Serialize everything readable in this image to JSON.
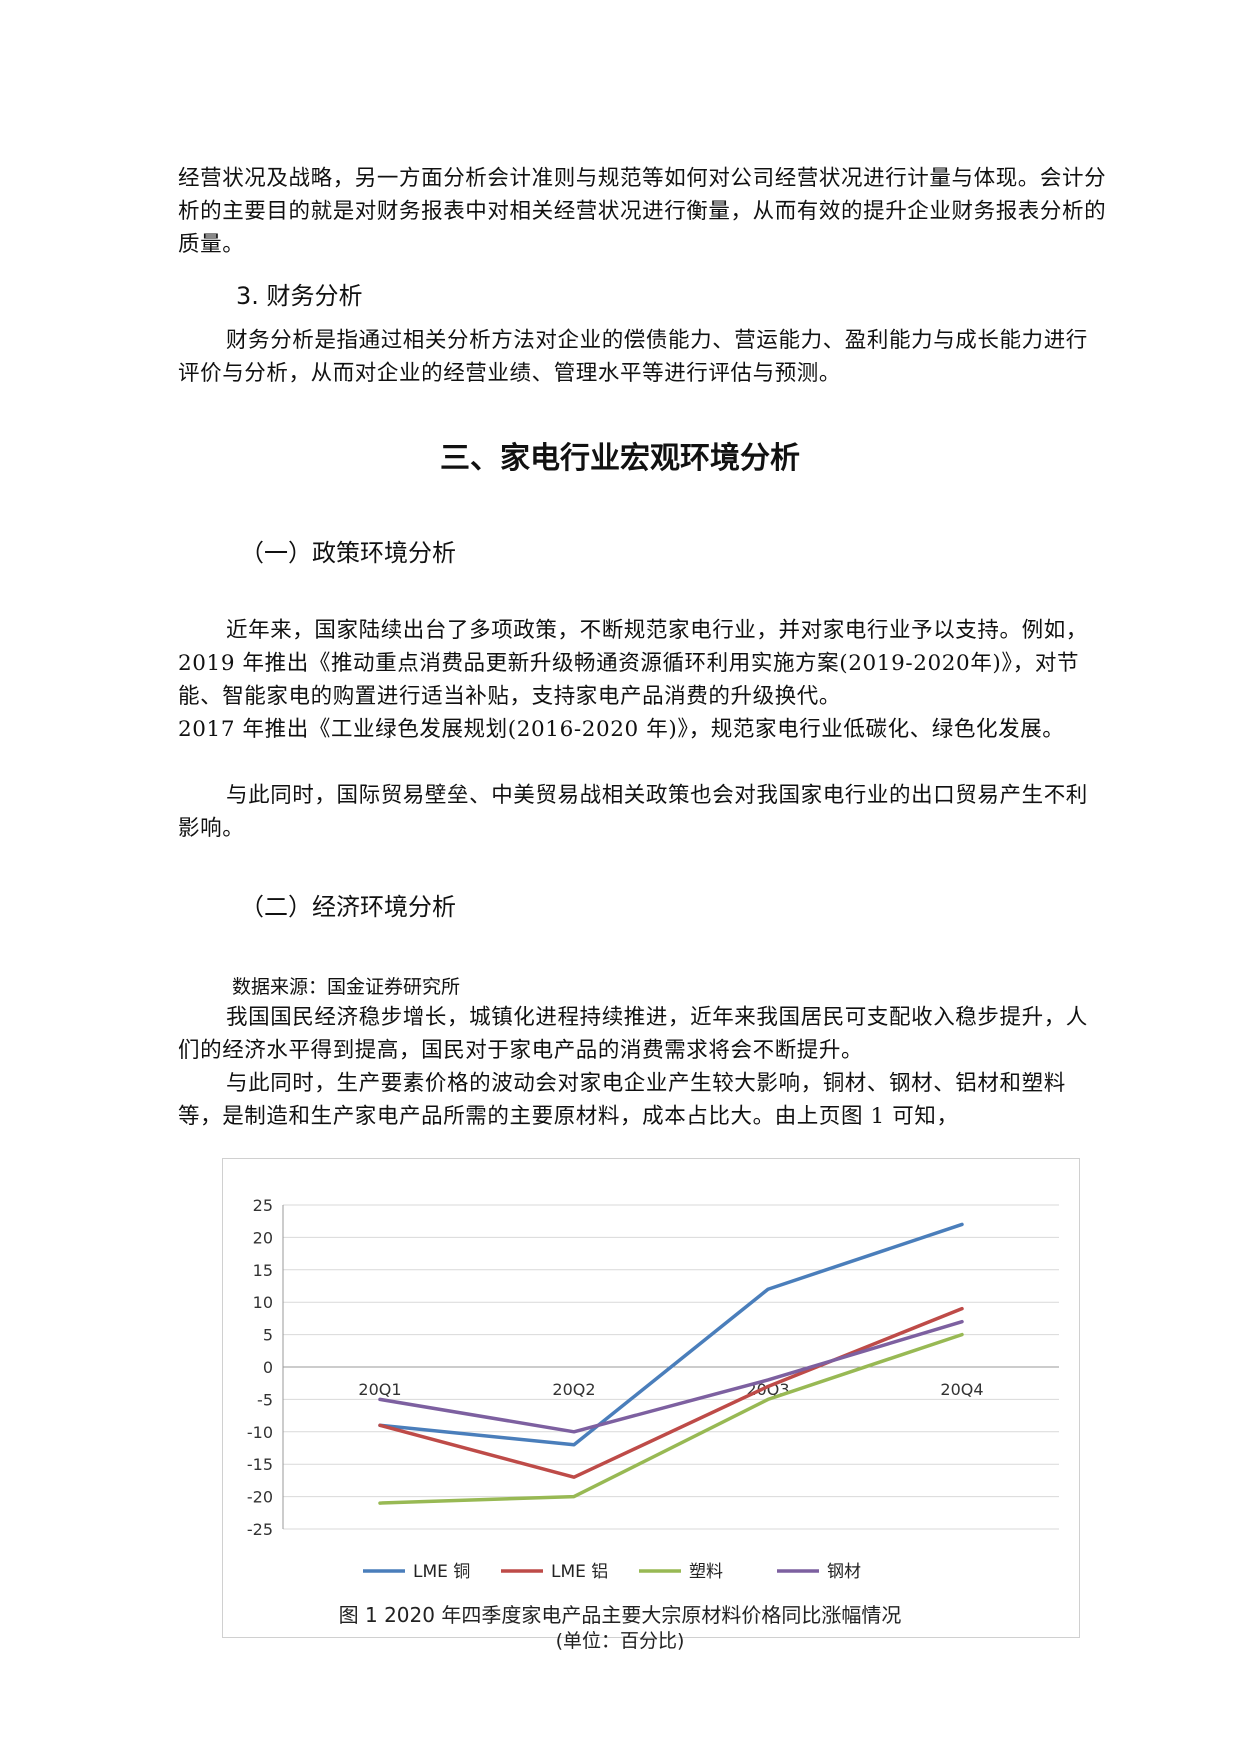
{
  "paragraphs": {
    "p1": "经营状况及战略，另一方面分析会计准则与规范等如何对公司经营状况进行计量与体现。会计分析的主要目的就是对财务报表中对相关经营状况进行衡量，从而有效的提升企业财务报表分析的质量。",
    "h3": "3. 财务分析",
    "p2": "财务分析是指通过相关分析方法对企业的偿债能力、营运能力、盈利能力与成长能力进行评价与分析，从而对企业的经营业绩、管理水平等进行评估与预测。",
    "section_title": "三、家电行业宏观环境分析",
    "sub1": "（一）政策环境分析",
    "p3a": "近年来，国家陆续出台了多项政策，不断规范家电行业，并对家电行业予以支持。例如，2019 年推出《推动重点消费品更新升级畅通资源循环利用实施方案(2019-2020年)》，对节能、智能家电的购置进行适当补贴，支持家电产品消费的升级换代。",
    "p3b": "2017 年推出《工业绿色发展规划(2016-2020 年)》，规范家电行业低碳化、绿色化发展。",
    "p4": "与此同时，国际贸易壁垒、中美贸易战相关政策也会对我国家电行业的出口贸易产生不利影响。",
    "sub2": "（二）经济环境分析",
    "source": "数据来源：国金证券研究所",
    "p5": "我国国民经济稳步增长，城镇化进程持续推进，近年来我国居民可支配收入稳步提升，人们的经济水平得到提高，国民对于家电产品的消费需求将会不断提升。",
    "p6": "与此同时，生产要素价格的波动会对家电企业产生较大影响，铜材、钢材、铝材和塑料等，是制造和生产家电产品所需的主要原材料，成本占比大。由上页图 1 可知，"
  },
  "chart_caption": "图 1 2020 年四季度家电产品主要大宗原材料价格同比涨幅情况",
  "chart_unit": "(单位：百分比)",
  "chart_data": {
    "type": "line",
    "categories": [
      "20Q1",
      "20Q2",
      "20Q3",
      "20Q4"
    ],
    "ylim": [
      -25,
      25
    ],
    "yticks": [
      25,
      20,
      15,
      10,
      5,
      0,
      -5,
      -10,
      -15,
      -20,
      -25
    ],
    "grid": true,
    "legend": "bottom",
    "series": [
      {
        "name": "LME 铜",
        "color": "#4a7ebb",
        "values": [
          -9,
          -12,
          12,
          22
        ]
      },
      {
        "name": "LME 铝",
        "color": "#be4b48",
        "values": [
          -9,
          -17,
          -3,
          9
        ]
      },
      {
        "name": "塑料",
        "color": "#98b954",
        "values": [
          -21,
          -20,
          -5,
          5
        ]
      },
      {
        "name": "钢材",
        "color": "#7d60a0",
        "values": [
          -5,
          -10,
          -2,
          7
        ]
      }
    ]
  }
}
